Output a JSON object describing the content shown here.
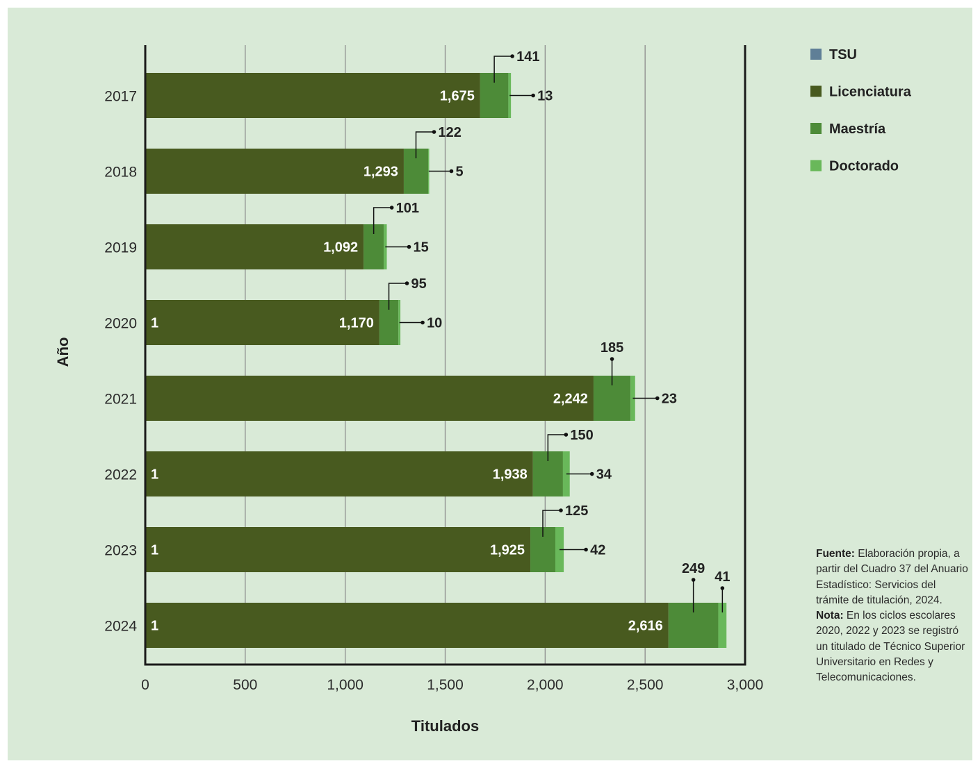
{
  "chart_data": {
    "type": "bar",
    "orientation": "horizontal",
    "stacked": true,
    "categories": [
      "2017",
      "2018",
      "2019",
      "2020",
      "2021",
      "2022",
      "2023",
      "2024"
    ],
    "series": [
      {
        "name": "TSU",
        "color": "#5f7f97",
        "values": [
          0,
          0,
          0,
          1,
          0,
          1,
          1,
          1
        ]
      },
      {
        "name": "Licenciatura",
        "color": "#485a1f",
        "values": [
          1675,
          1293,
          1092,
          1170,
          2242,
          1938,
          1925,
          2616
        ]
      },
      {
        "name": "Maestría",
        "color": "#4d8b38",
        "values": [
          141,
          122,
          101,
          95,
          185,
          150,
          125,
          249
        ]
      },
      {
        "name": "Doctorado",
        "color": "#69b85a",
        "values": [
          13,
          5,
          15,
          10,
          23,
          34,
          42,
          41
        ]
      }
    ],
    "labels": {
      "tsu": [
        "",
        "",
        "",
        "1",
        "",
        "1",
        "1",
        "1"
      ],
      "licenciatura": [
        "1,675",
        "1,293",
        "1,092",
        "1,170",
        "2,242",
        "1,938",
        "1,925",
        "2,616"
      ],
      "maestria": [
        "141",
        "122",
        "101",
        "95",
        "185",
        "150",
        "125",
        "249"
      ],
      "doctorado": [
        "13",
        "5",
        "15",
        "10",
        "23",
        "34",
        "42",
        "41"
      ]
    },
    "xlabel": "Titulados",
    "ylabel": "Año",
    "xlim": [
      0,
      3000
    ],
    "xticks": [
      0,
      500,
      1000,
      1500,
      2000,
      2500,
      3000
    ],
    "xtick_labels": [
      "0",
      "500",
      "1,000",
      "1,500",
      "2,000",
      "2,500",
      "3,000"
    ],
    "grid": true,
    "legend_position": "top-right"
  },
  "note": {
    "source_label": "Fuente:",
    "source_text": " Elaboración propia, a partir del Cuadro 37 del Anuario Estadístico: Servicios del trámite de titulación, 2024. ",
    "note_label": "Nota:",
    "note_text": " En los ciclos escolares 2020, 2022 y 2023 se registró un titulado de Técnico Superior Universitario en Redes y Telecomunicaciones."
  },
  "colors": {
    "background": "#d9ead7",
    "axis": "#1a1a1a",
    "grid": "#8c8c8c"
  }
}
